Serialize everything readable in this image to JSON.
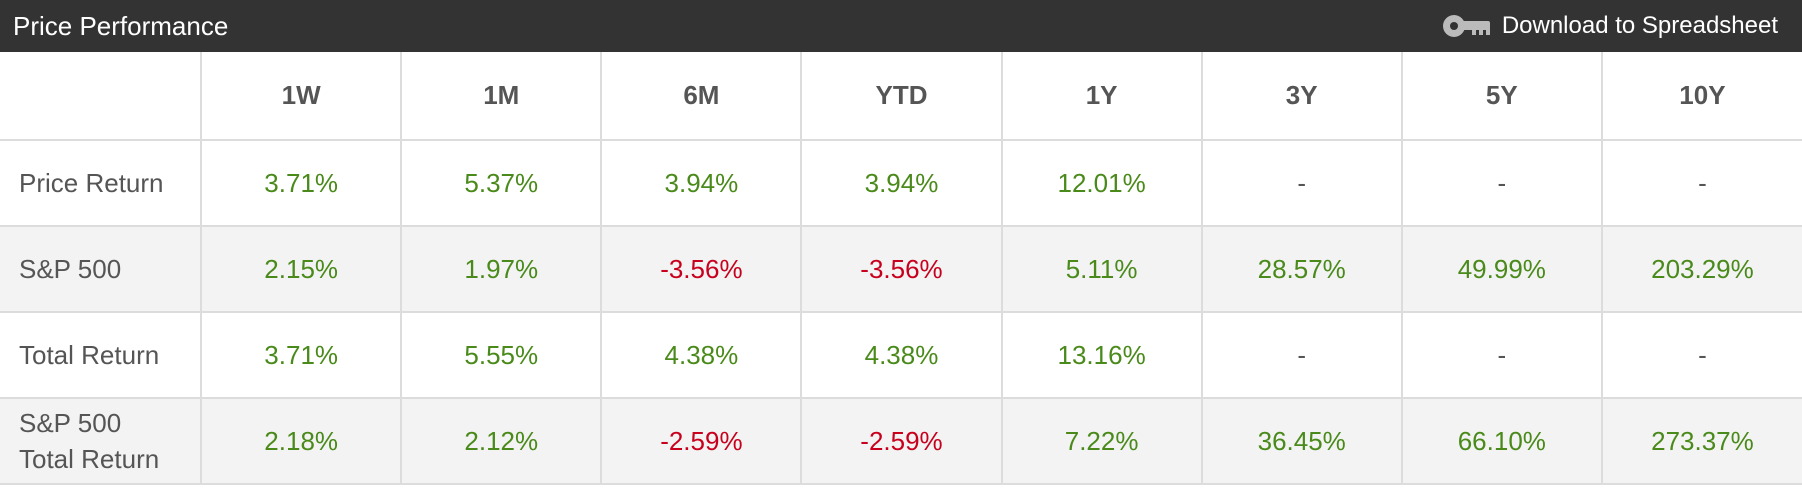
{
  "header": {
    "title": "Price Performance",
    "download_label": "Download to Spreadsheet",
    "download_icon": "key-icon"
  },
  "table": {
    "columns": [
      "1W",
      "1M",
      "6M",
      "YTD",
      "1Y",
      "3Y",
      "5Y",
      "10Y"
    ],
    "rows": [
      {
        "label_lines": [
          "Price Return"
        ],
        "values": [
          "3.71%",
          "5.37%",
          "3.94%",
          "3.94%",
          "12.01%",
          "-",
          "-",
          "-"
        ]
      },
      {
        "label_lines": [
          "S&P 500"
        ],
        "values": [
          "2.15%",
          "1.97%",
          "-3.56%",
          "-3.56%",
          "5.11%",
          "28.57%",
          "49.99%",
          "203.29%"
        ]
      },
      {
        "label_lines": [
          "Total Return"
        ],
        "values": [
          "3.71%",
          "5.55%",
          "4.38%",
          "4.38%",
          "13.16%",
          "-",
          "-",
          "-"
        ]
      },
      {
        "label_lines": [
          "S&P 500",
          "Total Return"
        ],
        "values": [
          "2.18%",
          "2.12%",
          "-2.59%",
          "-2.59%",
          "7.22%",
          "36.45%",
          "66.10%",
          "273.37%"
        ]
      }
    ]
  },
  "colors": {
    "header_bg": "#333333",
    "positive": "#4a8a1a",
    "negative": "#c8001e",
    "neutral": "#555555",
    "alt_row_bg": "#f3f3f3"
  }
}
